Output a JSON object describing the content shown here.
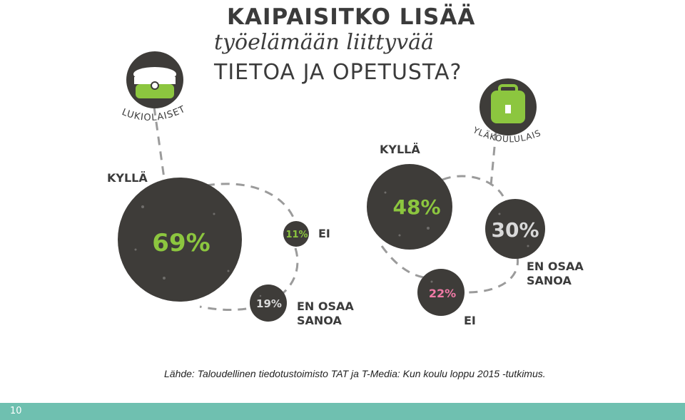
{
  "title": {
    "line1": "KAIPAISITKO LISÄÄ",
    "line2": "työelämään liittyvää",
    "line3": "TIETOA JA OPETUSTA?"
  },
  "groups": {
    "lukiolaiset": {
      "name": "LUKIOLAISET",
      "yes_label": "KYLLÄ",
      "yes_value": "69%",
      "no_label": "EI",
      "no_value": "11%",
      "dunno_label_1": "EN OSAA",
      "dunno_label_2": "SANOA",
      "dunno_value": "19%"
    },
    "ylakoululaiset": {
      "name": "YLÄKOULULAISET",
      "yes_label": "KYLLÄ",
      "yes_value": "48%",
      "dunno_label_1": "EN OSAA",
      "dunno_label_2": "SANOA",
      "dunno_value": "30%",
      "no_label": "EI",
      "no_value": "22%"
    }
  },
  "source": "Lähde: Taloudellinen tiedotustoimisto TAT ja T-Media: Kun koulu loppu 2015 -tutkimus.",
  "page_number": "10",
  "colors": {
    "circle": "#3e3c39",
    "green": "#8cc63f",
    "pink": "#f07aa6",
    "light": "#d9d9d9",
    "dash": "#9b9b9b",
    "footer": "#6fc0b0"
  }
}
